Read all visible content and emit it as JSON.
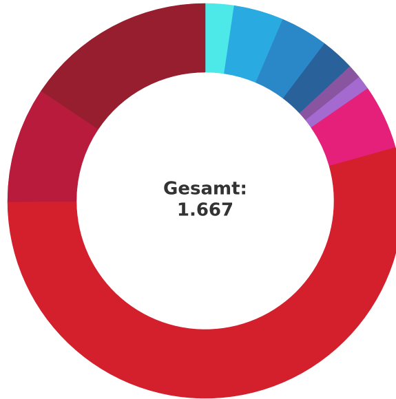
{
  "chart_data": {
    "type": "donut",
    "center_title": "Gesamt:",
    "center_value": "1.667",
    "values": [
      39,
      68,
      65,
      46,
      19,
      19,
      88,
      905,
      158,
      260
    ],
    "colors": [
      "#4de8e8",
      "#29abe2",
      "#2b88c8",
      "#29619a",
      "#8a55a0",
      "#a56ad0",
      "#e5207a",
      "#d41f2c",
      "#b81b3c",
      "#961e2e"
    ]
  }
}
